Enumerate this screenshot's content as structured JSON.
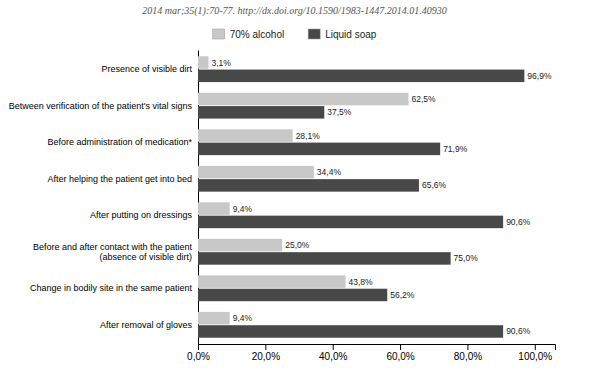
{
  "chart_data": {
    "type": "bar",
    "orientation": "horizontal",
    "subtitle": "2014 mar;35(1):70-77. http://dx.doi.org/10.1590/1983-1447.2014.01.40930",
    "categories": [
      "Presence of visible dirt",
      "Between verification of the patient's vital signs",
      "Before administration of medication*",
      "After helping the patient get into bed",
      "After putting on dressings",
      "Before and after contact with the patient\n(absence of visible dirt)",
      "Change in bodily site in the same patient",
      "After removal of gloves"
    ],
    "series": [
      {
        "name": "70% alcohol",
        "color": "#c8c8c8",
        "values": [
          3.1,
          62.5,
          28.1,
          34.4,
          9.4,
          25.0,
          43.8,
          9.4
        ],
        "value_labels": [
          "3,1%",
          "62,5%",
          "28,1%",
          "34,4%",
          "9,4%",
          "25,0%",
          "43,8%",
          "9,4%"
        ]
      },
      {
        "name": "Liquid soap",
        "color": "#484848",
        "values": [
          96.9,
          37.5,
          71.9,
          65.6,
          90.6,
          75.0,
          56.2,
          90.6
        ],
        "value_labels": [
          "96,9%",
          "37,5%",
          "71,9%",
          "65,6%",
          "90,6%",
          "75,0%",
          "56,2%",
          "90,6%"
        ]
      }
    ],
    "xlim": [
      0,
      106
    ],
    "xticks": [
      {
        "value": 0,
        "label": "0,0%"
      },
      {
        "value": 20,
        "label": "20,0%"
      },
      {
        "value": 40,
        "label": "40,0%"
      },
      {
        "value": 60,
        "label": "60,0%"
      },
      {
        "value": 80,
        "label": "80,0%"
      },
      {
        "value": 100,
        "label": "100,0%"
      }
    ],
    "data_labels": true,
    "legend": "top"
  }
}
